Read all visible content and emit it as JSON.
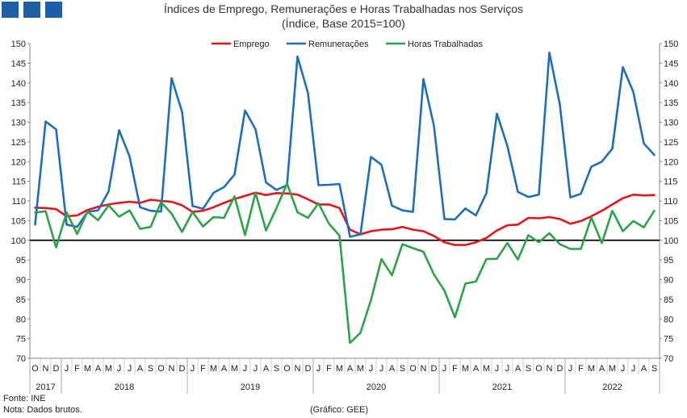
{
  "title_line1": "Índices de Emprego, Remunerações e Horas Trabalhadas nos Serviços",
  "title_line2": "(Índice, Base 2015=100)",
  "footer": {
    "source": "Fonte: INE",
    "note": "Nota: Dados brutos.",
    "credit": "(Gráfico: GEE)"
  },
  "chart_data": {
    "type": "line",
    "title": "Índices de Emprego, Remunerações e Horas Trabalhadas nos Serviços",
    "subtitle": "(Índice, Base 2015=100)",
    "ylim": [
      70,
      150
    ],
    "y_ticks": [
      70,
      75,
      80,
      85,
      90,
      95,
      100,
      105,
      110,
      115,
      120,
      125,
      130,
      135,
      140,
      145,
      150
    ],
    "reference_line": 100,
    "legend_position": "top",
    "months": [
      "O",
      "N",
      "D",
      "J",
      "F",
      "M",
      "A",
      "M",
      "J",
      "J",
      "A",
      "S",
      "O",
      "N",
      "D",
      "J",
      "F",
      "M",
      "A",
      "M",
      "J",
      "J",
      "A",
      "S",
      "O",
      "N",
      "D",
      "J",
      "F",
      "M",
      "A",
      "M",
      "J",
      "J",
      "A",
      "S",
      "O",
      "N",
      "D",
      "J",
      "F",
      "M",
      "A",
      "M",
      "J",
      "J",
      "A",
      "S",
      "O",
      "N",
      "D",
      "J",
      "F",
      "M",
      "A",
      "M",
      "J",
      "J",
      "A",
      "S"
    ],
    "years": [
      {
        "label": "2017",
        "start": 0,
        "end": 2
      },
      {
        "label": "2018",
        "start": 3,
        "end": 14
      },
      {
        "label": "2019",
        "start": 15,
        "end": 26
      },
      {
        "label": "2020",
        "start": 27,
        "end": 38
      },
      {
        "label": "2021",
        "start": 39,
        "end": 50
      },
      {
        "label": "2022",
        "start": 51,
        "end": 59
      }
    ],
    "series": [
      {
        "name": "Emprego",
        "color": "#e3161b",
        "values": [
          108.3,
          108.2,
          107.9,
          106.1,
          106.3,
          107.7,
          108.5,
          109.1,
          109.5,
          109.8,
          109.5,
          110.3,
          110.0,
          109.8,
          108.9,
          107.2,
          107.5,
          108.4,
          109.5,
          110.5,
          111.3,
          112.1,
          111.5,
          112.0,
          111.9,
          111.6,
          110.4,
          109.1,
          109.1,
          108.2,
          102.7,
          101.5,
          102.3,
          102.7,
          102.8,
          103.4,
          102.7,
          102.3,
          101.1,
          99.5,
          98.8,
          98.8,
          99.5,
          100.6,
          102.5,
          103.8,
          104.0,
          105.7,
          105.6,
          105.9,
          105.4,
          104.2,
          104.9,
          106.1,
          107.5,
          109.1,
          110.7,
          111.6,
          111.4,
          111.5
        ]
      },
      {
        "name": "Remunerações",
        "color": "#1f6fb8",
        "values": [
          104.0,
          130.2,
          128.2,
          104.0,
          103.4,
          107.2,
          107.6,
          112.4,
          128.0,
          121.3,
          108.4,
          107.5,
          107.3,
          141.2,
          132.7,
          108.7,
          108.0,
          112.1,
          113.5,
          116.7,
          133.0,
          128.2,
          114.7,
          112.8,
          114.0,
          146.7,
          137.4,
          114.0,
          114.1,
          114.3,
          100.9,
          101.5,
          121.2,
          119.2,
          108.8,
          107.6,
          107.2,
          141.0,
          129.1,
          105.4,
          105.3,
          108.1,
          106.3,
          112.0,
          132.2,
          124.0,
          112.3,
          111.0,
          111.6,
          147.7,
          134.5,
          110.9,
          111.8,
          118.7,
          120.0,
          123.3,
          144.0,
          137.7,
          124.6,
          121.7
        ]
      },
      {
        "name": "Horas Trabalhadas",
        "color": "#2ca34a",
        "values": [
          107.0,
          107.4,
          98.2,
          107.1,
          101.6,
          107.3,
          105.1,
          108.9,
          106.0,
          107.6,
          102.9,
          103.4,
          109.7,
          106.8,
          102.1,
          107.2,
          103.5,
          105.9,
          105.7,
          111.2,
          101.3,
          112.1,
          102.5,
          108.2,
          114.4,
          107.1,
          105.7,
          109.4,
          104.2,
          101.2,
          73.9,
          76.5,
          84.8,
          95.2,
          91.1,
          99.0,
          98.0,
          97.1,
          91.3,
          87.2,
          80.4,
          89.0,
          89.5,
          95.2,
          95.3,
          99.3,
          95.1,
          101.3,
          99.5,
          101.8,
          99.0,
          97.8,
          97.8,
          105.8,
          99.3,
          107.5,
          102.3,
          104.9,
          103.3,
          107.5
        ]
      }
    ]
  }
}
